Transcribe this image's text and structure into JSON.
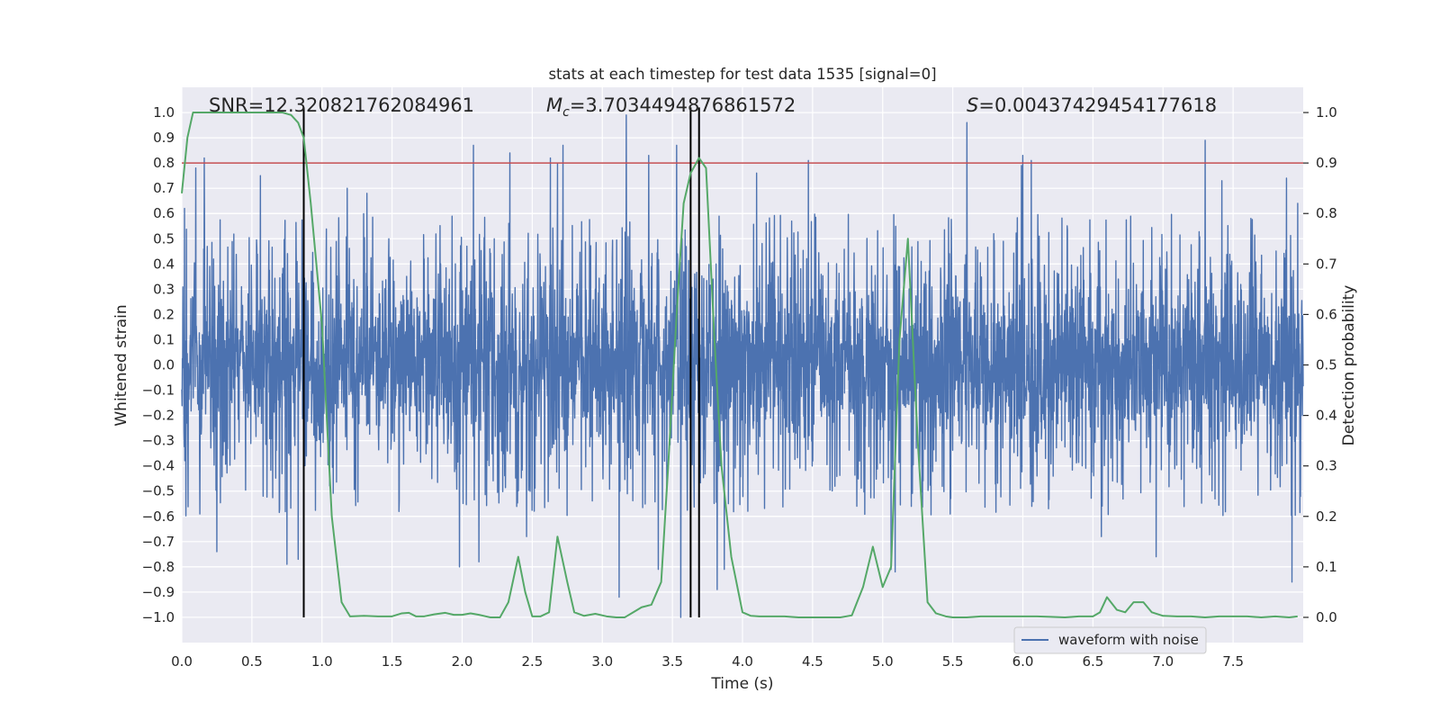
{
  "chart_data": {
    "type": "line",
    "title": "stats at each timestep for test data 1535 [signal=0]",
    "xlabel": "Time (s)",
    "ylabel": "Whitened strain",
    "y2label": "Detection probability",
    "xlim": [
      0.0,
      8.0
    ],
    "ylim": [
      -1.1,
      1.1
    ],
    "y2lim": [
      -0.05,
      1.05
    ],
    "xticks": [
      "0.0",
      "0.5",
      "1.0",
      "1.5",
      "2.0",
      "2.5",
      "3.0",
      "3.5",
      "4.0",
      "4.5",
      "5.0",
      "5.5",
      "6.0",
      "6.5",
      "7.0",
      "7.5"
    ],
    "yticks": [
      "1.0",
      "0.9",
      "0.8",
      "0.7",
      "0.6",
      "0.5",
      "0.4",
      "0.3",
      "0.2",
      "0.1",
      "0.0",
      "−0.1",
      "−0.2",
      "−0.3",
      "−0.4",
      "−0.5",
      "−0.6",
      "−0.7",
      "−0.8",
      "−0.9",
      "−1.0"
    ],
    "y2ticks": [
      "1.0",
      "0.9",
      "0.8",
      "0.7",
      "0.6",
      "0.5",
      "0.4",
      "0.3",
      "0.2",
      "0.1",
      "0.0"
    ],
    "annotations": {
      "snr": "SNR=12.320821762084961",
      "mc_symbol": "M",
      "mc_sub": "c",
      "mc_value": "=3.7034494876861572",
      "s_symbol": "S",
      "s_value": "=0.00437429454177618"
    },
    "legend": {
      "label": "waveform with noise",
      "position": "lower-right"
    },
    "threshold_line": {
      "value": 0.9,
      "axis": "secondary",
      "color": "#c44e52"
    },
    "vertical_lines": [
      0.87,
      3.63,
      3.69
    ],
    "series": [
      {
        "name": "waveform with noise",
        "color": "#4c72b0",
        "axis": "primary",
        "sample_count": 4096,
        "envelope_typical": 0.45,
        "spikes": [
          {
            "x": 0.02,
            "y": 0.62
          },
          {
            "x": 0.1,
            "y": 0.78
          },
          {
            "x": 0.16,
            "y": 0.82
          },
          {
            "x": 0.25,
            "y": -0.74
          },
          {
            "x": 0.56,
            "y": 0.75
          },
          {
            "x": 0.75,
            "y": -0.79
          },
          {
            "x": 0.83,
            "y": -0.77
          },
          {
            "x": 1.18,
            "y": 0.7
          },
          {
            "x": 1.32,
            "y": 0.68
          },
          {
            "x": 1.98,
            "y": -0.8
          },
          {
            "x": 2.08,
            "y": 0.87
          },
          {
            "x": 2.12,
            "y": -0.78
          },
          {
            "x": 2.34,
            "y": 0.84
          },
          {
            "x": 2.46,
            "y": -0.68
          },
          {
            "x": 2.63,
            "y": 0.82
          },
          {
            "x": 2.68,
            "y": 0.8
          },
          {
            "x": 2.72,
            "y": 0.87
          },
          {
            "x": 3.12,
            "y": -0.92
          },
          {
            "x": 3.17,
            "y": 0.99
          },
          {
            "x": 3.33,
            "y": 0.83
          },
          {
            "x": 3.4,
            "y": -0.81
          },
          {
            "x": 3.53,
            "y": 0.87
          },
          {
            "x": 3.56,
            "y": -1.0
          },
          {
            "x": 3.82,
            "y": -0.89
          },
          {
            "x": 3.87,
            "y": -0.81
          },
          {
            "x": 4.1,
            "y": 0.76
          },
          {
            "x": 4.47,
            "y": 0.81
          },
          {
            "x": 5.06,
            "y": -0.81
          },
          {
            "x": 5.09,
            "y": -0.82
          },
          {
            "x": 5.6,
            "y": 0.96
          },
          {
            "x": 5.99,
            "y": 0.79
          },
          {
            "x": 6.0,
            "y": 0.83
          },
          {
            "x": 6.06,
            "y": 0.81
          },
          {
            "x": 6.56,
            "y": -0.68
          },
          {
            "x": 6.95,
            "y": -0.76
          },
          {
            "x": 7.3,
            "y": 0.89
          },
          {
            "x": 7.42,
            "y": 0.73
          },
          {
            "x": 7.88,
            "y": 0.74
          },
          {
            "x": 7.92,
            "y": -0.86
          },
          {
            "x": 7.96,
            "y": 0.64
          }
        ]
      },
      {
        "name": "detection probability",
        "color": "#55a868",
        "axis": "secondary",
        "x": [
          0.0,
          0.04,
          0.08,
          0.15,
          0.25,
          0.35,
          0.45,
          0.55,
          0.65,
          0.72,
          0.78,
          0.83,
          0.87,
          0.92,
          1.0,
          1.07,
          1.14,
          1.2,
          1.3,
          1.4,
          1.5,
          1.57,
          1.62,
          1.67,
          1.73,
          1.8,
          1.88,
          1.94,
          2.0,
          2.06,
          2.12,
          2.2,
          2.27,
          2.33,
          2.4,
          2.45,
          2.5,
          2.56,
          2.62,
          2.68,
          2.75,
          2.8,
          2.87,
          2.95,
          3.03,
          3.1,
          3.16,
          3.22,
          3.28,
          3.35,
          3.42,
          3.47,
          3.53,
          3.58,
          3.63,
          3.69,
          3.74,
          3.8,
          3.85,
          3.92,
          4.0,
          4.06,
          4.12,
          4.2,
          4.3,
          4.4,
          4.5,
          4.6,
          4.7,
          4.78,
          4.86,
          4.93,
          5.0,
          5.06,
          5.12,
          5.18,
          5.25,
          5.32,
          5.38,
          5.45,
          5.5,
          5.6,
          5.7,
          5.8,
          5.9,
          6.0,
          6.1,
          6.2,
          6.3,
          6.4,
          6.5,
          6.55,
          6.6,
          6.67,
          6.73,
          6.79,
          6.86,
          6.92,
          7.0,
          7.1,
          7.2,
          7.3,
          7.4,
          7.5,
          7.6,
          7.7,
          7.8,
          7.9,
          7.96
        ],
        "values": [
          0.84,
          0.95,
          1.0,
          1.0,
          1.0,
          1.0,
          1.0,
          1.0,
          1.0,
          1.0,
          0.995,
          0.98,
          0.95,
          0.82,
          0.58,
          0.2,
          0.03,
          0.002,
          0.003,
          0.002,
          0.002,
          0.008,
          0.009,
          0.002,
          0.002,
          0.006,
          0.009,
          0.005,
          0.005,
          0.008,
          0.005,
          0.0,
          0.0,
          0.03,
          0.12,
          0.05,
          0.002,
          0.002,
          0.01,
          0.16,
          0.07,
          0.01,
          0.003,
          0.007,
          0.002,
          0.0,
          0.0,
          0.01,
          0.02,
          0.025,
          0.07,
          0.3,
          0.6,
          0.82,
          0.88,
          0.91,
          0.89,
          0.55,
          0.3,
          0.12,
          0.01,
          0.003,
          0.002,
          0.002,
          0.002,
          0.0,
          0.0,
          0.0,
          0.0,
          0.004,
          0.06,
          0.14,
          0.06,
          0.1,
          0.55,
          0.75,
          0.35,
          0.03,
          0.008,
          0.002,
          0.0,
          0.0,
          0.002,
          0.002,
          0.002,
          0.002,
          0.002,
          0.001,
          0.0,
          0.002,
          0.002,
          0.01,
          0.04,
          0.015,
          0.01,
          0.03,
          0.03,
          0.01,
          0.003,
          0.002,
          0.002,
          0.0,
          0.002,
          0.002,
          0.002,
          0.0,
          0.002,
          0.0,
          0.002
        ]
      }
    ]
  }
}
